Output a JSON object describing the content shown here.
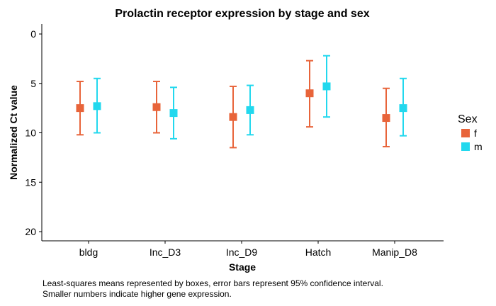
{
  "chart_data": {
    "type": "scatter",
    "title": "Prolactin receptor expression by stage and sex",
    "xlabel": "Stage",
    "ylabel": "Normalized Ct value",
    "categories": [
      "bldg",
      "Inc_D3",
      "Inc_D9",
      "Hatch",
      "Manip_D8"
    ],
    "y_axis_reversed": true,
    "ylim": [
      0,
      21
    ],
    "yticks": [
      0,
      5,
      10,
      15,
      20
    ],
    "grid": false,
    "legend": {
      "title": "Sex",
      "position": "right",
      "entries": [
        "f",
        "m"
      ]
    },
    "series": [
      {
        "name": "f",
        "color": "#E8643A",
        "values": [
          7.5,
          7.4,
          8.4,
          6.0,
          8.5
        ],
        "lower": [
          4.8,
          4.8,
          5.3,
          2.7,
          5.5
        ],
        "upper": [
          10.2,
          10.0,
          11.5,
          9.4,
          11.4
        ]
      },
      {
        "name": "m",
        "color": "#22D8EE",
        "values": [
          7.3,
          8.0,
          7.7,
          5.3,
          7.5
        ],
        "lower": [
          4.5,
          5.4,
          5.2,
          2.2,
          4.5
        ],
        "upper": [
          10.0,
          10.6,
          10.2,
          8.4,
          10.3
        ]
      }
    ]
  },
  "caption": {
    "line1": "Least-squares means represented by boxes, error bars represent 95% confidence interval.",
    "line2": "Smaller numbers indicate higher gene expression."
  }
}
